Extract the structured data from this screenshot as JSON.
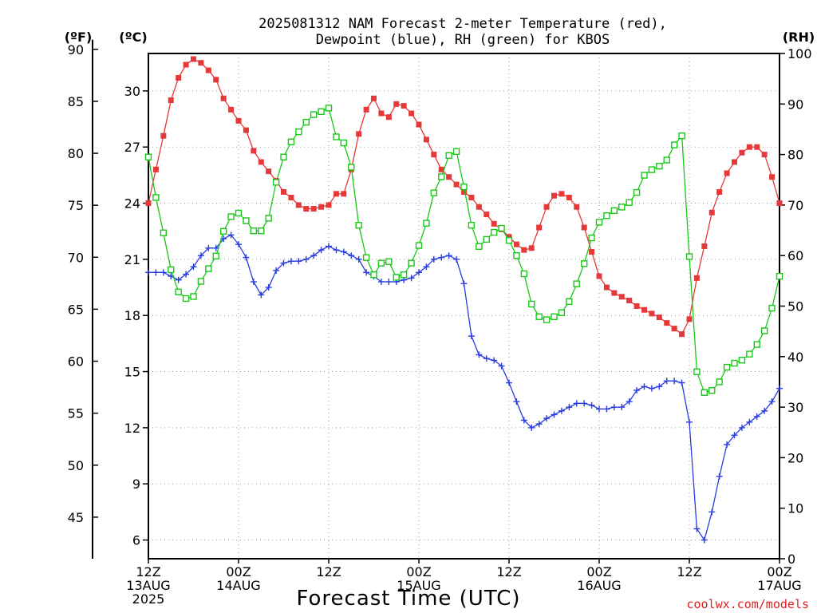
{
  "title_lines": [
    "2025081312 NAM Forecast 2-meter Temperature (red),",
    "Dewpoint (blue), RH (green) for KBOS"
  ],
  "axis_units": {
    "fahrenheit": "(ºF)",
    "celsius": "(ºC)",
    "rh": "(RH)"
  },
  "xlabel": "Forecast Time (UTC)",
  "credit": "coolwx.com/models",
  "colors": {
    "temperature": "#e53838",
    "dewpoint": "#2a3ce0",
    "rh": "#19c819",
    "grid": "#9a9a9a",
    "axis": "#000000"
  },
  "chart_data": {
    "type": "line",
    "title": "2025081312 NAM Forecast 2-meter Temperature (red), Dewpoint (blue), RH (green) for KBOS",
    "xlabel": "Forecast Time (UTC)",
    "x_units": "forecast hour from 2025-08-13 12Z",
    "xlim": [
      0,
      84
    ],
    "x_ticks": [
      {
        "hour": 0,
        "lines": [
          "12Z",
          "13AUG",
          "2025"
        ]
      },
      {
        "hour": 12,
        "lines": [
          "00Z",
          "14AUG"
        ]
      },
      {
        "hour": 24,
        "lines": [
          "12Z"
        ]
      },
      {
        "hour": 36,
        "lines": [
          "00Z",
          "15AUG"
        ]
      },
      {
        "hour": 48,
        "lines": [
          "12Z"
        ]
      },
      {
        "hour": 60,
        "lines": [
          "00Z",
          "16AUG"
        ]
      },
      {
        "hour": 72,
        "lines": [
          "12Z"
        ]
      },
      {
        "hour": 84,
        "lines": [
          "00Z",
          "17AUG"
        ]
      }
    ],
    "y_celsius": {
      "label": "(ºC)",
      "lim": [
        5,
        32
      ],
      "ticks": [
        6,
        9,
        12,
        15,
        18,
        21,
        24,
        27,
        30
      ]
    },
    "y_fahrenheit": {
      "label": "(ºF)",
      "ticks": [
        45,
        50,
        55,
        60,
        65,
        70,
        75,
        80,
        85,
        90
      ]
    },
    "y_rh": {
      "label": "(RH)",
      "lim": [
        0,
        100
      ],
      "ticks": [
        0,
        10,
        20,
        30,
        40,
        50,
        60,
        70,
        80,
        90,
        100
      ]
    },
    "grid": true,
    "series": [
      {
        "name": "Temperature",
        "color": "#e53838",
        "marker": "filled-square",
        "axis": "celsius",
        "x": [
          0,
          1,
          2,
          3,
          4,
          5,
          6,
          7,
          8,
          9,
          10,
          11,
          12,
          13,
          14,
          15,
          16,
          17,
          18,
          19,
          20,
          21,
          22,
          23,
          24,
          25,
          26,
          27,
          28,
          29,
          30,
          31,
          32,
          33,
          34,
          35,
          36,
          37,
          38,
          39,
          40,
          41,
          42,
          43,
          44,
          45,
          46,
          47,
          48,
          49,
          50,
          51,
          52,
          53,
          54,
          55,
          56,
          57,
          58,
          59,
          60,
          61,
          62,
          63,
          64,
          65,
          66,
          67,
          68,
          69,
          70,
          71,
          72,
          73,
          74,
          75,
          76,
          77,
          78,
          79,
          80,
          81,
          82,
          83,
          84
        ],
        "y": [
          24.0,
          25.8,
          27.6,
          29.5,
          30.7,
          31.4,
          31.7,
          31.5,
          31.1,
          30.6,
          29.6,
          29.0,
          28.4,
          27.9,
          26.8,
          26.2,
          25.7,
          25.2,
          24.6,
          24.3,
          23.9,
          23.7,
          23.7,
          23.8,
          23.9,
          24.5,
          24.5,
          25.8,
          27.7,
          29.0,
          29.6,
          28.8,
          28.6,
          29.3,
          29.2,
          28.8,
          28.2,
          27.4,
          26.6,
          25.8,
          25.4,
          25.0,
          24.6,
          24.3,
          23.8,
          23.4,
          22.9,
          22.6,
          22.2,
          21.8,
          21.5,
          21.6,
          22.7,
          23.8,
          24.4,
          24.5,
          24.3,
          23.8,
          22.7,
          21.4,
          20.1,
          19.5,
          19.2,
          19.0,
          18.8,
          18.5,
          18.3,
          18.1,
          17.9,
          17.6,
          17.3,
          17.0,
          17.8,
          20.0,
          21.7,
          23.5,
          24.6,
          25.6,
          26.2,
          26.7,
          27.0,
          27.0,
          26.6,
          25.4,
          24.0
        ]
      },
      {
        "name": "Dewpoint",
        "color": "#2a3ce0",
        "marker": "plus",
        "axis": "celsius",
        "x": [
          0,
          1,
          2,
          3,
          4,
          5,
          6,
          7,
          8,
          9,
          10,
          11,
          12,
          13,
          14,
          15,
          16,
          17,
          18,
          19,
          20,
          21,
          22,
          23,
          24,
          25,
          26,
          27,
          28,
          29,
          30,
          31,
          32,
          33,
          34,
          35,
          36,
          37,
          38,
          39,
          40,
          41,
          42,
          43,
          44,
          45,
          46,
          47,
          48,
          49,
          50,
          51,
          52,
          53,
          54,
          55,
          56,
          57,
          58,
          59,
          60,
          61,
          62,
          63,
          64,
          65,
          66,
          67,
          68,
          69,
          70,
          71,
          72,
          73,
          74,
          75,
          76,
          77,
          78,
          79,
          80,
          81,
          82,
          83,
          84
        ],
        "y": [
          20.3,
          20.3,
          20.3,
          20.1,
          19.9,
          20.2,
          20.6,
          21.2,
          21.6,
          21.6,
          22.1,
          22.3,
          21.8,
          21.1,
          19.8,
          19.1,
          19.5,
          20.4,
          20.8,
          20.9,
          20.9,
          21.0,
          21.2,
          21.5,
          21.7,
          21.5,
          21.4,
          21.2,
          21.0,
          20.3,
          20.1,
          19.8,
          19.8,
          19.8,
          19.9,
          20.0,
          20.3,
          20.6,
          21.0,
          21.1,
          21.2,
          21.0,
          19.7,
          16.9,
          15.9,
          15.7,
          15.6,
          15.3,
          14.4,
          13.4,
          12.4,
          12.0,
          12.2,
          12.5,
          12.7,
          12.9,
          13.1,
          13.3,
          13.3,
          13.2,
          13.0,
          13.0,
          13.1,
          13.1,
          13.4,
          14.0,
          14.2,
          14.1,
          14.2,
          14.5,
          14.5,
          14.4,
          12.3,
          6.6,
          6.0,
          7.5,
          9.4,
          11.1,
          11.6,
          12.0,
          12.3,
          12.6,
          12.9,
          13.4,
          14.1
        ]
      },
      {
        "name": "RH",
        "color": "#19c819",
        "marker": "open-square",
        "axis": "rh",
        "x": [
          0,
          1,
          2,
          3,
          4,
          5,
          6,
          7,
          8,
          9,
          10,
          11,
          12,
          13,
          14,
          15,
          16,
          17,
          18,
          19,
          20,
          21,
          22,
          23,
          24,
          25,
          26,
          27,
          28,
          29,
          30,
          31,
          32,
          33,
          34,
          35,
          36,
          37,
          38,
          39,
          40,
          41,
          42,
          43,
          44,
          45,
          46,
          47,
          48,
          49,
          50,
          51,
          52,
          53,
          54,
          55,
          56,
          57,
          58,
          59,
          60,
          61,
          62,
          63,
          64,
          65,
          66,
          67,
          68,
          69,
          70,
          71,
          72,
          73,
          74,
          75,
          76,
          77,
          78,
          79,
          80,
          81,
          82,
          83,
          84
        ],
        "y": [
          79.5,
          71.5,
          64.5,
          57.2,
          52.8,
          51.5,
          51.9,
          54.9,
          57.4,
          59.9,
          64.8,
          67.7,
          68.4,
          66.9,
          64.9,
          64.9,
          67.4,
          74.5,
          79.5,
          82.5,
          84.5,
          86.4,
          87.9,
          88.5,
          89.2,
          83.5,
          82.3,
          77.5,
          66.0,
          59.6,
          56.2,
          58.5,
          58.8,
          55.7,
          56.2,
          58.5,
          62.0,
          66.4,
          72.4,
          75.6,
          79.8,
          80.6,
          73.6,
          66.0,
          61.8,
          63.2,
          64.6,
          65.4,
          63.0,
          60.0,
          56.4,
          50.4,
          47.9,
          47.3,
          47.9,
          48.7,
          50.9,
          54.4,
          58.4,
          63.5,
          66.6,
          67.9,
          68.9,
          69.6,
          70.5,
          72.5,
          75.9,
          77.0,
          77.7,
          78.9,
          81.9,
          83.7,
          59.8,
          37.0,
          32.9,
          33.3,
          35.0,
          37.9,
          38.7,
          39.3,
          40.5,
          42.4,
          45.1,
          49.6,
          55.9
        ]
      }
    ]
  }
}
